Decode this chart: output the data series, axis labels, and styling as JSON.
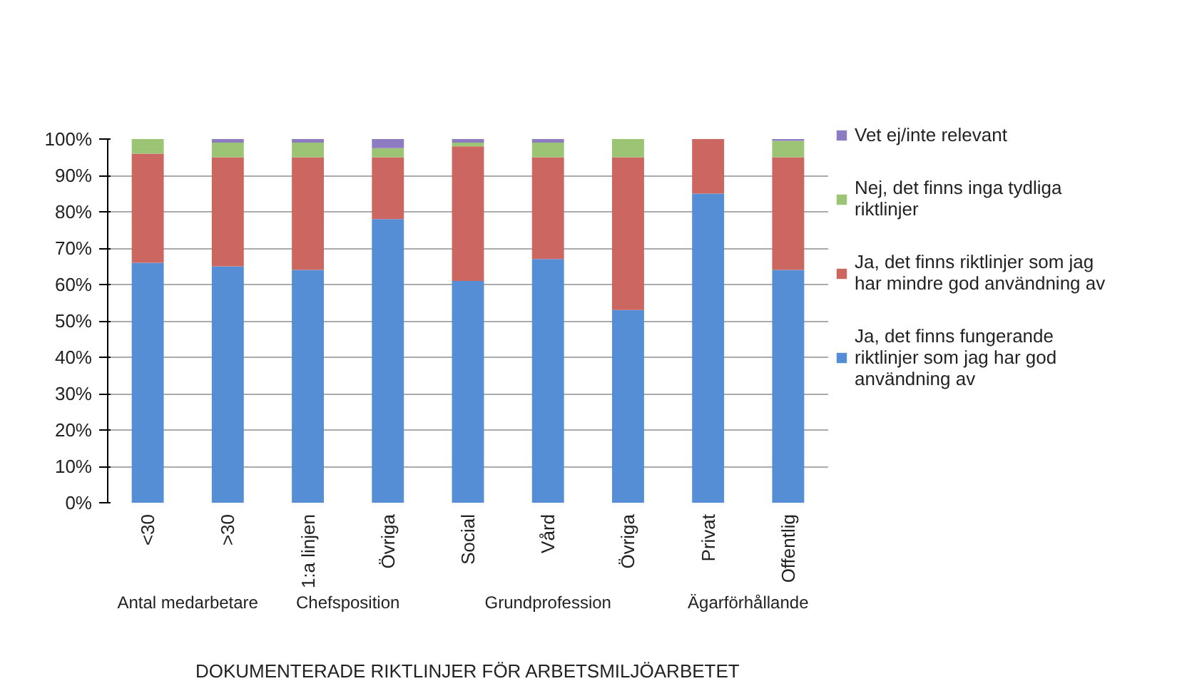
{
  "chart_data": {
    "type": "bar",
    "stacked": true,
    "categories": [
      "<30",
      ">30",
      "1:a linjen",
      "Övriga",
      "Social",
      "Vård",
      "Övriga",
      "Privat",
      "Offentlig"
    ],
    "annotations": [
      "Antal medarbetare",
      "Chefsposition",
      "Grundprofession",
      "Ägarförhållande"
    ],
    "xlabel": "DOKUMENTERADE RIKTLINJER FÖR ARBETSMILJÖARBETET",
    "series": [
      {
        "name": "Ja, det finns fungerande riktlinjer som jag har god användning av",
        "color": "#558ed5",
        "values": [
          66,
          65,
          64,
          78,
          61,
          67,
          53,
          85,
          64
        ]
      },
      {
        "name": "Ja, det finns riktlinjer som jag har mindre god användning av",
        "color": "#cc6660",
        "values": [
          30,
          30,
          31,
          17,
          37,
          28,
          42,
          15,
          31
        ]
      },
      {
        "name": "Nej, det finns inga tydliga riktlinjer",
        "color": "#9bc475",
        "values": [
          4,
          4,
          4,
          2.5,
          1,
          4,
          5,
          0,
          4.5
        ]
      },
      {
        "name": "Vet ej/inte relevant",
        "color": "#8e7cc3",
        "values": [
          0,
          1,
          1,
          2.5,
          1,
          1,
          0,
          0,
          0.5
        ]
      }
    ],
    "ylim": [
      0,
      100
    ],
    "yticks": [
      {
        "value": 0,
        "label": "0%"
      },
      {
        "value": 10,
        "label": "10%"
      },
      {
        "value": 20,
        "label": "20%"
      },
      {
        "value": 30,
        "label": "30%"
      },
      {
        "value": 40,
        "label": "40%"
      },
      {
        "value": 50,
        "label": "50%"
      },
      {
        "value": 60,
        "label": "60%"
      },
      {
        "value": 70,
        "label": "70%"
      },
      {
        "value": 80,
        "label": "80%"
      },
      {
        "value": 90,
        "label": "90%"
      },
      {
        "value": 100,
        "label": "100%"
      }
    ],
    "grid": "y",
    "legend": "right"
  }
}
